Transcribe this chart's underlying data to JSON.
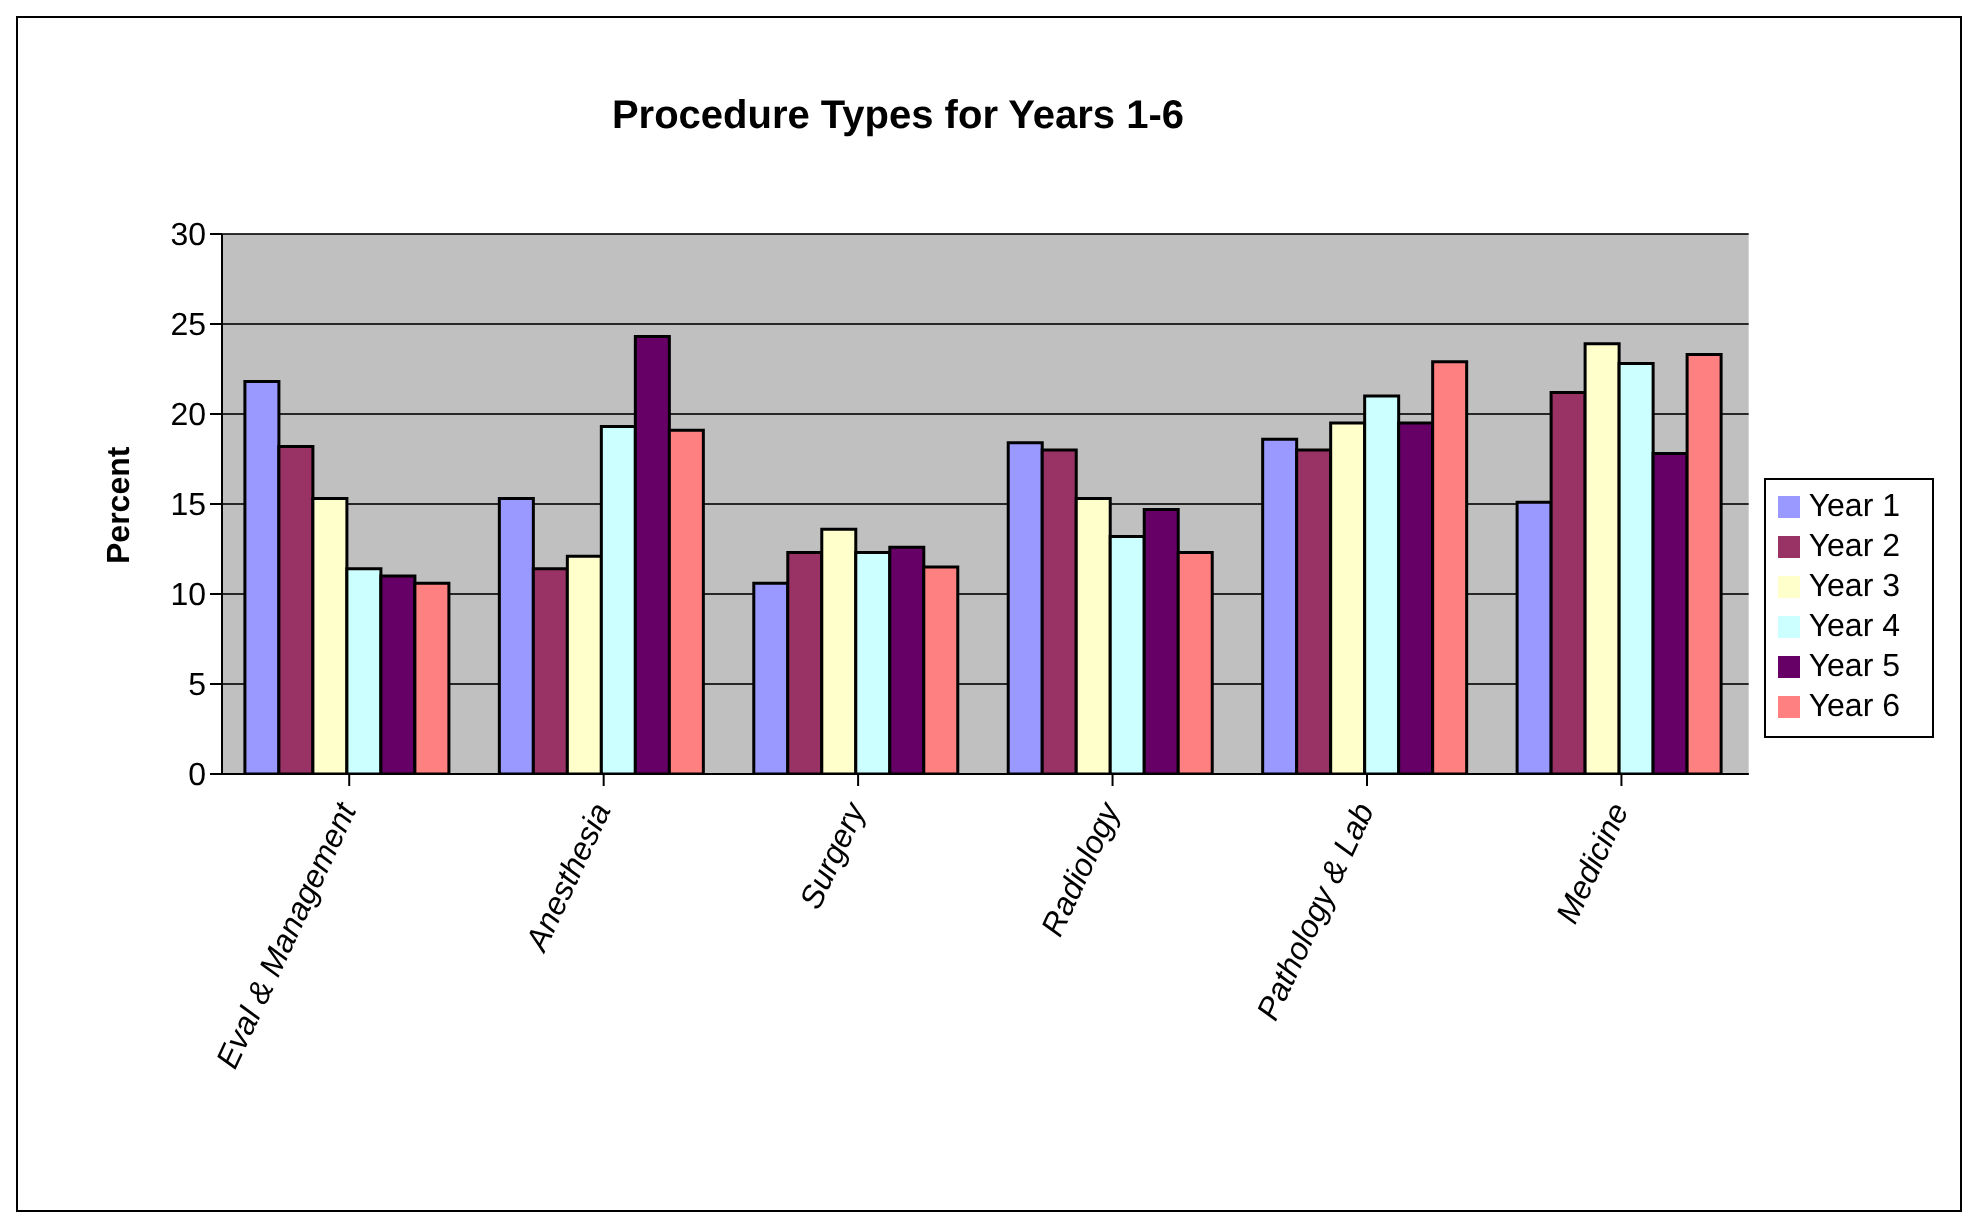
{
  "chart_data": {
    "type": "bar",
    "title": "Procedure Types for Years 1-6",
    "ylabel": "Percent",
    "categories": [
      "Eval & Management",
      "Anesthesia",
      "Surgery",
      "Radiology",
      "Pathology & Lab",
      "Medicine"
    ],
    "series": [
      {
        "name": "Year 1",
        "color": "#9999ff",
        "values": [
          21.8,
          15.3,
          10.6,
          18.4,
          18.6,
          15.1
        ]
      },
      {
        "name": "Year 2",
        "color": "#993366",
        "values": [
          18.2,
          11.4,
          12.3,
          18.0,
          18.0,
          21.2
        ]
      },
      {
        "name": "Year 3",
        "color": "#ffffcc",
        "values": [
          15.3,
          12.1,
          13.6,
          15.3,
          19.5,
          23.9
        ]
      },
      {
        "name": "Year 4",
        "color": "#ccffff",
        "values": [
          11.4,
          19.3,
          12.3,
          13.2,
          21.0,
          22.8
        ]
      },
      {
        "name": "Year 5",
        "color": "#660066",
        "values": [
          11.0,
          24.3,
          12.6,
          14.7,
          19.5,
          17.8
        ]
      },
      {
        "name": "Year 6",
        "color": "#ff8080",
        "values": [
          10.6,
          19.1,
          11.5,
          12.3,
          22.9,
          23.3
        ]
      }
    ],
    "ylim": [
      0,
      30
    ],
    "yticks": [
      0,
      5,
      10,
      15,
      20,
      25,
      30
    ],
    "grid": "y",
    "legend": "right"
  }
}
